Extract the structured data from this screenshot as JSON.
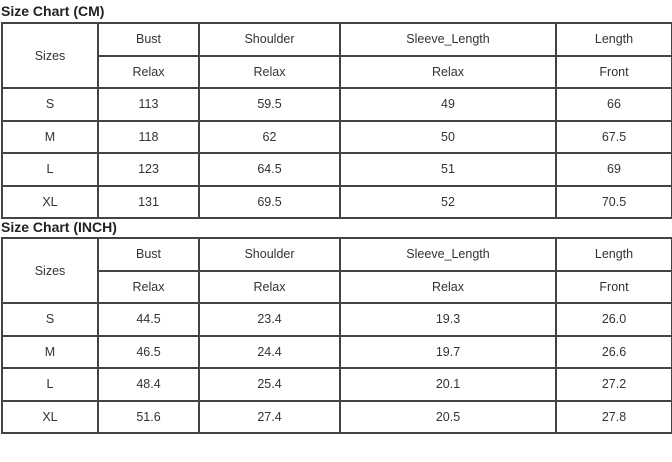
{
  "tables": [
    {
      "title": "Size Chart (CM)",
      "header": {
        "sizes": "Sizes",
        "columns": [
          "Bust",
          "Shoulder",
          "Sleeve_Length",
          "Length"
        ],
        "sub": [
          "Relax",
          "Relax",
          "Relax",
          "Front"
        ]
      },
      "rows": [
        [
          "S",
          "113",
          "59.5",
          "49",
          "66"
        ],
        [
          "M",
          "118",
          "62",
          "50",
          "67.5"
        ],
        [
          "L",
          "123",
          "64.5",
          "51",
          "69"
        ],
        [
          "XL",
          "131",
          "69.5",
          "52",
          "70.5"
        ]
      ]
    },
    {
      "title": "Size Chart (INCH)",
      "header": {
        "sizes": "Sizes",
        "columns": [
          "Bust",
          "Shoulder",
          "Sleeve_Length",
          "Length"
        ],
        "sub": [
          "Relax",
          "Relax",
          "Relax",
          "Front"
        ]
      },
      "rows": [
        [
          "S",
          "44.5",
          "23.4",
          "19.3",
          "26.0"
        ],
        [
          "M",
          "46.5",
          "24.4",
          "19.7",
          "26.6"
        ],
        [
          "L",
          "48.4",
          "25.4",
          "20.1",
          "27.2"
        ],
        [
          "XL",
          "51.6",
          "27.4",
          "20.5",
          "27.8"
        ]
      ]
    }
  ]
}
